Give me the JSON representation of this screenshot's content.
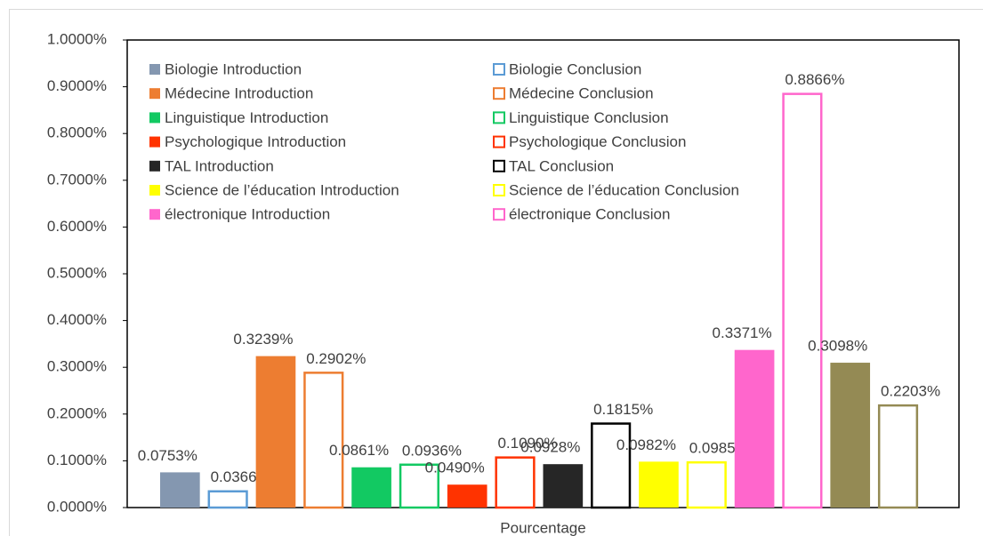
{
  "chart_data": {
    "type": "bar",
    "categories": [
      "Pourcentage"
    ],
    "ylim": [
      0,
      1
    ],
    "yticks": [
      {
        "value": 0,
        "label": "0.0000%"
      },
      {
        "value": 0.1,
        "label": "0.1000%"
      },
      {
        "value": 0.2,
        "label": "0.2000%"
      },
      {
        "value": 0.3,
        "label": "0.3000%"
      },
      {
        "value": 0.4,
        "label": "0.4000%"
      },
      {
        "value": 0.5,
        "label": "0.5000%"
      },
      {
        "value": 0.6,
        "label": "0.6000%"
      },
      {
        "value": 0.7,
        "label": "0.7000%"
      },
      {
        "value": 0.8,
        "label": "0.8000%"
      },
      {
        "value": 0.9,
        "label": "0.9000%"
      },
      {
        "value": 1,
        "label": "1.0000%"
      }
    ],
    "legend": "top-left",
    "series": [
      {
        "name": "Biologie Introduction",
        "color": "#8497b0",
        "style": "filled",
        "values": [
          0.0753
        ],
        "value_labels": [
          "0.0753%"
        ]
      },
      {
        "name": "Biologie Conclusion",
        "color": "#5b9bd5",
        "style": "outline",
        "values": [
          0.0366
        ],
        "value_labels": [
          "0.0366%"
        ]
      },
      {
        "name": "Médecine Introduction",
        "color": "#ed7d31",
        "style": "filled",
        "values": [
          0.3239
        ],
        "value_labels": [
          "0.3239%"
        ]
      },
      {
        "name": "Médecine Conclusion",
        "color": "#ed7d31",
        "style": "outline",
        "values": [
          0.2902
        ],
        "value_labels": [
          "0.2902%"
        ]
      },
      {
        "name": "Linguistique Introduction",
        "color": "#12c962",
        "style": "filled",
        "values": [
          0.0861
        ],
        "value_labels": [
          "0.0861%"
        ]
      },
      {
        "name": "Linguistique Conclusion",
        "color": "#12c962",
        "style": "outline",
        "values": [
          0.0936
        ],
        "value_labels": [
          "0.0936%"
        ]
      },
      {
        "name": "Psychologique Introduction",
        "color": "#ff3300",
        "style": "filled",
        "values": [
          0.049
        ],
        "value_labels": [
          "0.0490%"
        ]
      },
      {
        "name": "Psychologique Conclusion",
        "color": "#ff3300",
        "style": "outline",
        "values": [
          0.109
        ],
        "value_labels": [
          "0.1090%"
        ]
      },
      {
        "name": "TAL Introduction",
        "color": "#262626",
        "style": "filled",
        "values": [
          0.0928
        ],
        "value_labels": [
          "0.0928%"
        ]
      },
      {
        "name": "TAL Conclusion",
        "color": "#000000",
        "style": "outline",
        "values": [
          0.1815
        ],
        "value_labels": [
          "0.1815%"
        ]
      },
      {
        "name": "Science de l’éducation Introduction",
        "color": "#ffff00",
        "style": "filled",
        "values": [
          0.0982
        ],
        "value_labels": [
          "0.0982%"
        ]
      },
      {
        "name": "Science de l’éducation Conclusion",
        "color": "#ffff00",
        "style": "outline",
        "values": [
          0.0985
        ],
        "value_labels": [
          "0.0985%"
        ]
      },
      {
        "name": "électronique Introduction",
        "color": "#ff66cc",
        "style": "filled",
        "values": [
          0.3371
        ],
        "value_labels": [
          "0.3371%"
        ]
      },
      {
        "name": "électronique Conclusion",
        "color": "#ff66cc",
        "style": "outline",
        "values": [
          0.8866
        ],
        "value_labels": [
          "0.8866%"
        ]
      },
      {
        "color": "#948a54",
        "style": "filled",
        "values": [
          0.3098
        ],
        "value_labels": [
          "0.3098%"
        ]
      },
      {
        "color": "#948a54",
        "style": "outline",
        "values": [
          0.2203
        ],
        "value_labels": [
          "0.2203%"
        ]
      }
    ]
  }
}
